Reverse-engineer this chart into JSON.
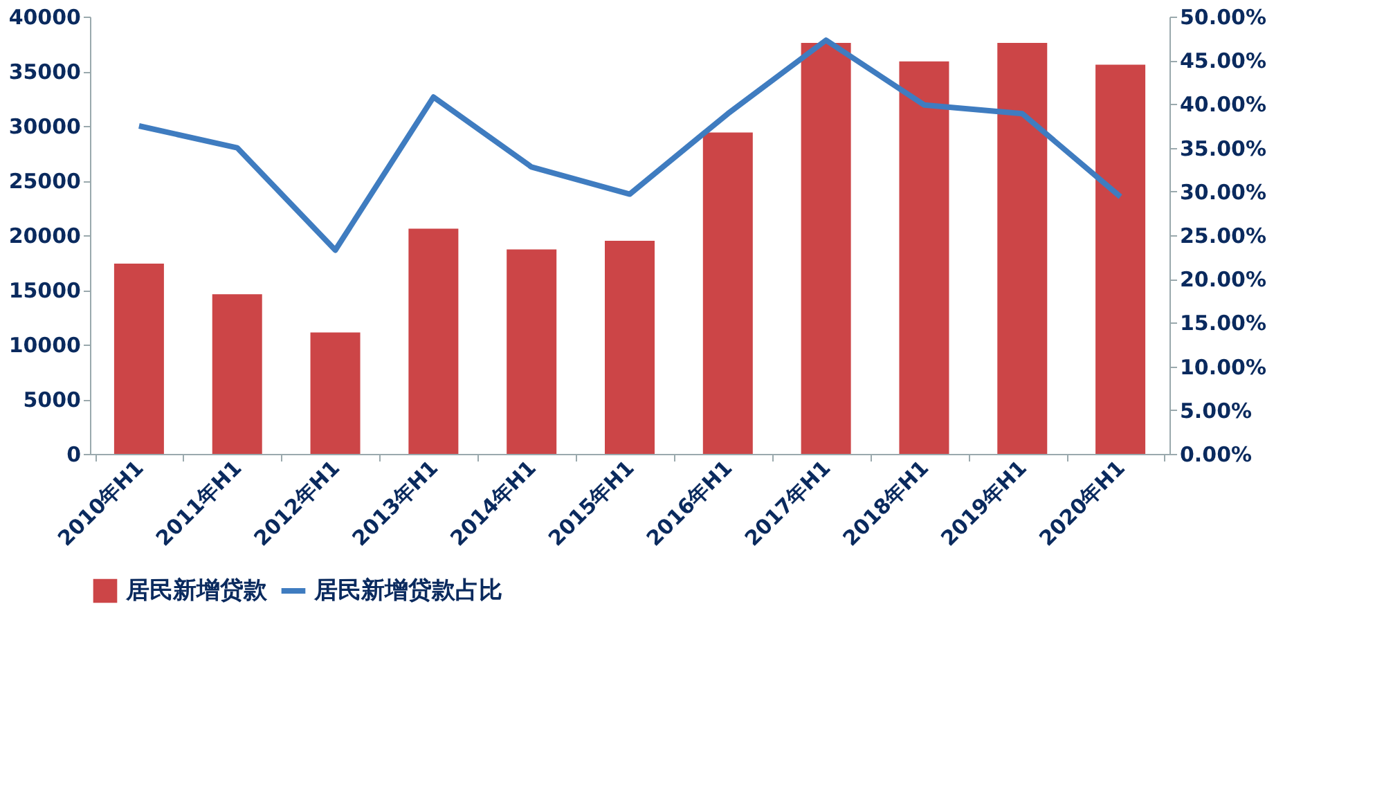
{
  "chart_data": {
    "type": "bar",
    "categories": [
      "2010年H1",
      "2011年H1",
      "2012年H1",
      "2013年H1",
      "2014年H1",
      "2015年H1",
      "2016年H1",
      "2017年H1",
      "2018年H1",
      "2019年H1",
      "2020年H1"
    ],
    "series": [
      {
        "name": "居民新增贷款",
        "color": "#cc4547",
        "values": [
          17400,
          14600,
          11100,
          20600,
          18700,
          19500,
          29400,
          37600,
          35900,
          37600,
          35600
        ]
      },
      {
        "name": "居民新增贷款占比",
        "type": "line",
        "axis": "y2",
        "color": "#3f7cc0",
        "values": [
          37.5,
          35.0,
          23.3,
          40.8,
          32.8,
          29.7,
          38.9,
          47.3,
          39.9,
          38.9,
          29.4
        ]
      }
    ],
    "ylim": [
      0,
      40000
    ],
    "yticks": [
      0,
      5000,
      10000,
      15000,
      20000,
      25000,
      30000,
      35000,
      40000
    ],
    "y2lim": [
      0,
      50
    ],
    "y2ticks": [
      {
        "value": 0,
        "label": "0.00%"
      },
      {
        "value": 5,
        "label": "5.00%"
      },
      {
        "value": 10,
        "label": "10.00%"
      },
      {
        "value": 15,
        "label": "15.00%"
      },
      {
        "value": 20,
        "label": "20.00%"
      },
      {
        "value": 25,
        "label": "25.00%"
      },
      {
        "value": 30,
        "label": "30.00%"
      },
      {
        "value": 35,
        "label": "35.00%"
      },
      {
        "value": 40,
        "label": "40.00%"
      },
      {
        "value": 45,
        "label": "45.00%"
      },
      {
        "value": 50,
        "label": "50.00%"
      }
    ],
    "grid": false,
    "legend": "bottom",
    "marker": "none",
    "line_style": "solid"
  }
}
